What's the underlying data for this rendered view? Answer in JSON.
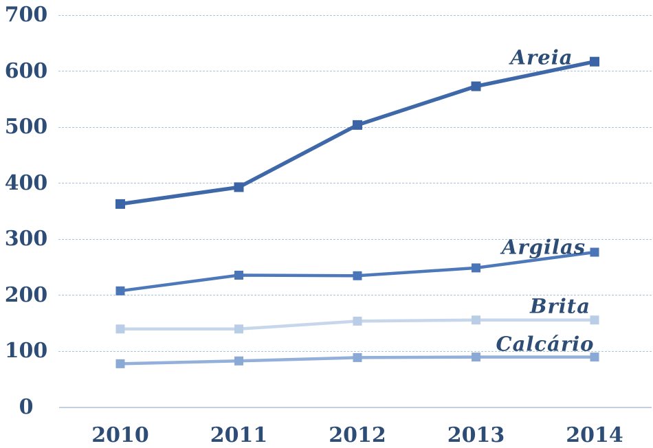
{
  "chart_data": {
    "type": "line",
    "title": "",
    "xlabel": "",
    "ylabel": "",
    "categories": [
      "2010",
      "2011",
      "2012",
      "2013",
      "2014"
    ],
    "series": [
      {
        "name": "Areia",
        "values": [
          363,
          393,
          504,
          573,
          617
        ],
        "color": "#3e68a8",
        "marker_color": "#3a64a5"
      },
      {
        "name": "Argilas",
        "values": [
          208,
          236,
          235,
          249,
          277
        ],
        "color": "#4d79bb",
        "marker_color": "#4a76b8"
      },
      {
        "name": "Brita",
        "values": [
          140,
          140,
          154,
          156,
          156
        ],
        "color": "#c7d7eb",
        "marker_color": "#b9cde7"
      },
      {
        "name": "Calcário",
        "values": [
          78,
          83,
          89,
          90,
          90
        ],
        "color": "#92b0d9",
        "marker_color": "#8aa9d4"
      }
    ],
    "y_ticks": [
      0,
      100,
      200,
      300,
      400,
      500,
      600,
      700
    ],
    "ylim": [
      0,
      700
    ],
    "grid": "horizontal-dashed",
    "legend": "inline-series-labels",
    "marker": "square"
  },
  "colors": {
    "background": "#ffffff",
    "tick_label": "#2d4d76",
    "series_label": "#2d4d76",
    "gridline": "#a7c3dd",
    "zero_line": "#c3cfdf"
  }
}
